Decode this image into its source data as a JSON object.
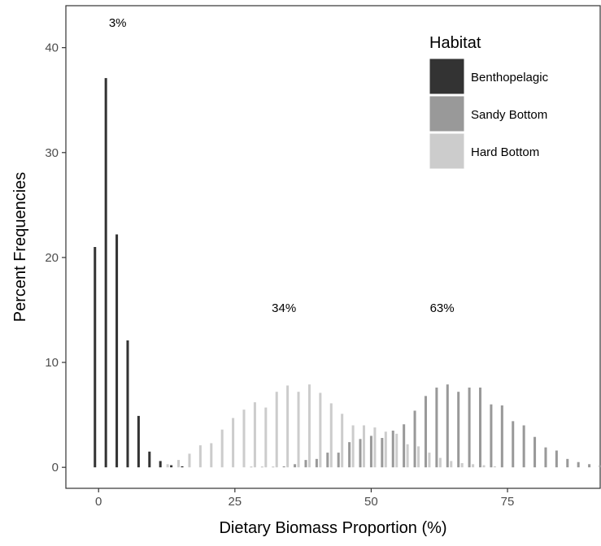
{
  "chart_data": {
    "type": "bar",
    "xlabel": "Dietary Biomass Proportion (%)",
    "ylabel": "Percent Frequencies",
    "xlim": [
      -6,
      92
    ],
    "ylim": [
      -2,
      44
    ],
    "xticks": [
      0,
      25,
      50,
      75
    ],
    "xtick_labels": [
      "0",
      "25",
      "50",
      "75"
    ],
    "yticks": [
      0,
      10,
      20,
      30,
      40
    ],
    "ytick_labels": [
      "0",
      "10",
      "20",
      "30",
      "40"
    ],
    "grid": false,
    "legend_title": "Habitat",
    "legend_position": "top-right",
    "bin_width": 2,
    "series": [
      {
        "name": "Benthopelagic",
        "color": "#333333",
        "points": [
          {
            "x": 0,
            "y": 21.0
          },
          {
            "x": 2,
            "y": 37.1
          },
          {
            "x": 4,
            "y": 22.2
          },
          {
            "x": 6,
            "y": 12.1
          },
          {
            "x": 8,
            "y": 4.9
          },
          {
            "x": 10,
            "y": 1.5
          },
          {
            "x": 12,
            "y": 0.6
          },
          {
            "x": 14,
            "y": 0.2
          },
          {
            "x": 16,
            "y": 0.1
          }
        ]
      },
      {
        "name": "Sandy Bottom",
        "color": "#999999",
        "points": [
          {
            "x": 28,
            "y": 0.05
          },
          {
            "x": 30,
            "y": 0.05
          },
          {
            "x": 32,
            "y": 0.05
          },
          {
            "x": 34,
            "y": 0.1
          },
          {
            "x": 36,
            "y": 0.3
          },
          {
            "x": 38,
            "y": 0.7
          },
          {
            "x": 40,
            "y": 0.8
          },
          {
            "x": 42,
            "y": 1.4
          },
          {
            "x": 44,
            "y": 1.4
          },
          {
            "x": 46,
            "y": 2.4
          },
          {
            "x": 48,
            "y": 2.7
          },
          {
            "x": 50,
            "y": 3.0
          },
          {
            "x": 52,
            "y": 2.8
          },
          {
            "x": 54,
            "y": 3.5
          },
          {
            "x": 56,
            "y": 4.1
          },
          {
            "x": 58,
            "y": 5.4
          },
          {
            "x": 60,
            "y": 6.8
          },
          {
            "x": 62,
            "y": 7.6
          },
          {
            "x": 64,
            "y": 7.9
          },
          {
            "x": 66,
            "y": 7.2
          },
          {
            "x": 68,
            "y": 7.6
          },
          {
            "x": 70,
            "y": 7.6
          },
          {
            "x": 72,
            "y": 6.0
          },
          {
            "x": 74,
            "y": 5.9
          },
          {
            "x": 76,
            "y": 4.4
          },
          {
            "x": 78,
            "y": 4.0
          },
          {
            "x": 80,
            "y": 2.9
          },
          {
            "x": 82,
            "y": 1.9
          },
          {
            "x": 84,
            "y": 1.6
          },
          {
            "x": 86,
            "y": 0.8
          },
          {
            "x": 88,
            "y": 0.5
          },
          {
            "x": 90,
            "y": 0.3
          },
          {
            "x": 92,
            "y": 0.2
          }
        ]
      },
      {
        "name": "Hard Bottom",
        "color": "#cccccc",
        "points": [
          {
            "x": 12,
            "y": 0.3
          },
          {
            "x": 14,
            "y": 0.7
          },
          {
            "x": 16,
            "y": 1.3
          },
          {
            "x": 18,
            "y": 2.1
          },
          {
            "x": 20,
            "y": 2.3
          },
          {
            "x": 22,
            "y": 3.6
          },
          {
            "x": 24,
            "y": 4.7
          },
          {
            "x": 26,
            "y": 5.5
          },
          {
            "x": 28,
            "y": 6.2
          },
          {
            "x": 30,
            "y": 5.7
          },
          {
            "x": 32,
            "y": 7.2
          },
          {
            "x": 34,
            "y": 7.8
          },
          {
            "x": 36,
            "y": 7.2
          },
          {
            "x": 38,
            "y": 7.9
          },
          {
            "x": 40,
            "y": 7.1
          },
          {
            "x": 42,
            "y": 6.1
          },
          {
            "x": 44,
            "y": 5.1
          },
          {
            "x": 46,
            "y": 4.0
          },
          {
            "x": 48,
            "y": 4.0
          },
          {
            "x": 50,
            "y": 3.8
          },
          {
            "x": 52,
            "y": 3.4
          },
          {
            "x": 54,
            "y": 3.2
          },
          {
            "x": 56,
            "y": 2.2
          },
          {
            "x": 58,
            "y": 2.0
          },
          {
            "x": 60,
            "y": 1.4
          },
          {
            "x": 62,
            "y": 0.9
          },
          {
            "x": 64,
            "y": 0.6
          },
          {
            "x": 66,
            "y": 0.4
          },
          {
            "x": 68,
            "y": 0.3
          },
          {
            "x": 70,
            "y": 0.2
          },
          {
            "x": 72,
            "y": 0.1
          }
        ]
      }
    ],
    "annotations": [
      {
        "text": "3%",
        "x": 3.5,
        "y": 42
      },
      {
        "text": "34%",
        "x": 34,
        "y": 14.8
      },
      {
        "text": "63%",
        "x": 63,
        "y": 14.8
      }
    ]
  }
}
